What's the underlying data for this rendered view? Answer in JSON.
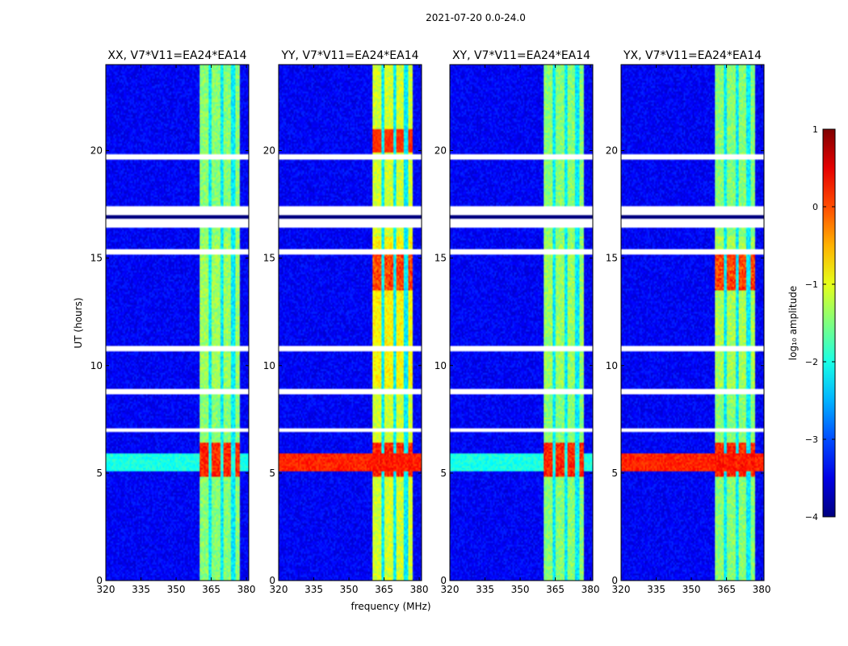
{
  "chart_data": {
    "type": "heatmap",
    "title": "2021-07-20 0.0-24.0",
    "xlabel": "frequency (MHz)",
    "ylabel": "UT (hours)",
    "xlim": [
      320,
      381
    ],
    "ylim": [
      0,
      24
    ],
    "xticks": [
      320,
      335,
      350,
      365,
      380
    ],
    "yticks": [
      0,
      5,
      10,
      15,
      20
    ],
    "colorbar": {
      "label": "log10 amplitude",
      "label_text": "log₁₀ amplitude",
      "range": [
        -4,
        1
      ],
      "ticks": [
        1,
        0,
        -1,
        -2,
        -3,
        -4
      ],
      "tick_labels": [
        "1",
        "0",
        "−1",
        "−2",
        "−3",
        "−4"
      ],
      "colormap": "jet"
    },
    "panels": [
      {
        "name": "XX",
        "title": "XX, V7*V11=EA24*EA14",
        "intensity": 1.0
      },
      {
        "name": "YY",
        "title": "YY, V7*V11=EA24*EA14",
        "intensity": 1.7
      },
      {
        "name": "XY",
        "title": "XY, V7*V11=EA24*EA14",
        "intensity": 0.95
      },
      {
        "name": "YX",
        "title": "YX, V7*V11=EA24*EA14",
        "intensity": 1.35
      }
    ],
    "features": {
      "rfi_band_mhz": [
        360,
        377
      ],
      "rfi_subbands_mhz": [
        [
          360,
          364
        ],
        [
          365,
          369
        ],
        [
          370,
          373.5
        ],
        [
          375,
          377
        ]
      ],
      "bright_event_ut": [
        4.8,
        6.4
      ],
      "broadband_event_ut": [
        5.1,
        5.9
      ],
      "gap_ut": [
        [
          19.6,
          19.85
        ],
        [
          17.0,
          17.4
        ],
        [
          16.4,
          16.8
        ],
        [
          15.2,
          15.45
        ],
        [
          10.7,
          10.9
        ],
        [
          8.7,
          8.95
        ],
        [
          6.9,
          7.1
        ]
      ],
      "background_log10": -3.4
    }
  }
}
